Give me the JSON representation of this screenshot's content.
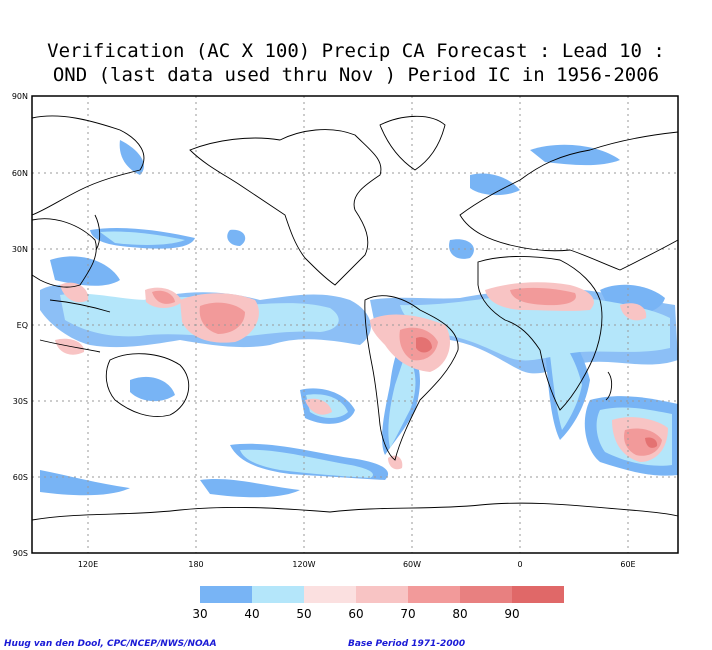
{
  "title": {
    "line1": "Verification (AC X 100) Precip CA Forecast : Lead 10 :",
    "line2": "OND (last data used thru Nov ) Period IC in 1956-2006"
  },
  "axes": {
    "lat_labels": [
      "90N",
      "60N",
      "30N",
      "EQ",
      "30S",
      "60S",
      "90S"
    ],
    "lon_labels": [
      "120E",
      "180",
      "120W",
      "60W",
      "0",
      "60E"
    ]
  },
  "legend": {
    "values": [
      "30",
      "40",
      "50",
      "60",
      "70",
      "80",
      "90"
    ],
    "colors": [
      "#78b4f5",
      "#b4e6fa",
      "#fbe0e0",
      "#f8c4c4",
      "#f29a9a",
      "#e88080",
      "#e06868"
    ]
  },
  "credits": {
    "left": "Huug van den Dool, CPC/NCEP/NWS/NOAA",
    "right": "Base Period 1971-2000"
  },
  "colors": {
    "frame": "#000000",
    "grid": "#9a9a9a",
    "credit_text": "#1a1ad6"
  }
}
